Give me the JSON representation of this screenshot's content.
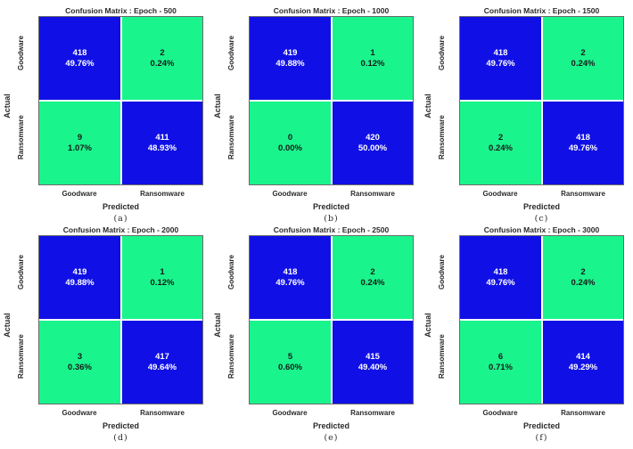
{
  "chart_data": [
    {
      "type": "heatmap",
      "title": "Confusion Matrix : Epoch - 500",
      "xlabel": "Predicted",
      "ylabel": "Actual",
      "x_categories": [
        "Goodware",
        "Ransomware"
      ],
      "y_categories": [
        "Goodware",
        "Ransomware"
      ],
      "values": [
        [
          418,
          2
        ],
        [
          9,
          411
        ]
      ],
      "percentages": [
        [
          "49.76%",
          "0.24%"
        ],
        [
          "1.07%",
          "48.93%"
        ]
      ],
      "caption": "(a)"
    },
    {
      "type": "heatmap",
      "title": "Confusion Matrix : Epoch - 1000",
      "xlabel": "Predicted",
      "ylabel": "Actual",
      "x_categories": [
        "Goodware",
        "Ransomware"
      ],
      "y_categories": [
        "Goodware",
        "Ransomware"
      ],
      "values": [
        [
          419,
          1
        ],
        [
          0,
          420
        ]
      ],
      "percentages": [
        [
          "49.88%",
          "0.12%"
        ],
        [
          "0.00%",
          "50.00%"
        ]
      ],
      "caption": "(b)"
    },
    {
      "type": "heatmap",
      "title": "Confusion Matrix : Epoch - 1500",
      "xlabel": "Predicted",
      "ylabel": "Actual",
      "x_categories": [
        "Goodware",
        "Ransomware"
      ],
      "y_categories": [
        "Goodware",
        "Ransomware"
      ],
      "values": [
        [
          418,
          2
        ],
        [
          2,
          418
        ]
      ],
      "percentages": [
        [
          "49.76%",
          "0.24%"
        ],
        [
          "0.24%",
          "49.76%"
        ]
      ],
      "caption": "(c)"
    },
    {
      "type": "heatmap",
      "title": "Confusion Matrix : Epoch - 2000",
      "xlabel": "Predicted",
      "ylabel": "Actual",
      "x_categories": [
        "Goodware",
        "Ransomware"
      ],
      "y_categories": [
        "Goodware",
        "Ransomware"
      ],
      "values": [
        [
          419,
          1
        ],
        [
          3,
          417
        ]
      ],
      "percentages": [
        [
          "49.88%",
          "0.12%"
        ],
        [
          "0.36%",
          "49.64%"
        ]
      ],
      "caption": "(d)"
    },
    {
      "type": "heatmap",
      "title": "Confusion Matrix : Epoch - 2500",
      "xlabel": "Predicted",
      "ylabel": "Actual",
      "x_categories": [
        "Goodware",
        "Ransomware"
      ],
      "y_categories": [
        "Goodware",
        "Ransomware"
      ],
      "values": [
        [
          418,
          2
        ],
        [
          5,
          415
        ]
      ],
      "percentages": [
        [
          "49.76%",
          "0.24%"
        ],
        [
          "0.60%",
          "49.40%"
        ]
      ],
      "caption": "(e)"
    },
    {
      "type": "heatmap",
      "title": "Confusion Matrix : Epoch - 3000",
      "xlabel": "Predicted",
      "ylabel": "Actual",
      "x_categories": [
        "Goodware",
        "Ransomware"
      ],
      "y_categories": [
        "Goodware",
        "Ransomware"
      ],
      "values": [
        [
          418,
          2
        ],
        [
          6,
          414
        ]
      ],
      "percentages": [
        [
          "49.76%",
          "0.24%"
        ],
        [
          "0.71%",
          "49.29%"
        ]
      ],
      "caption": "(f)"
    }
  ],
  "colors": {
    "correct": "#1010e6",
    "incorrect": "#19f58c"
  }
}
